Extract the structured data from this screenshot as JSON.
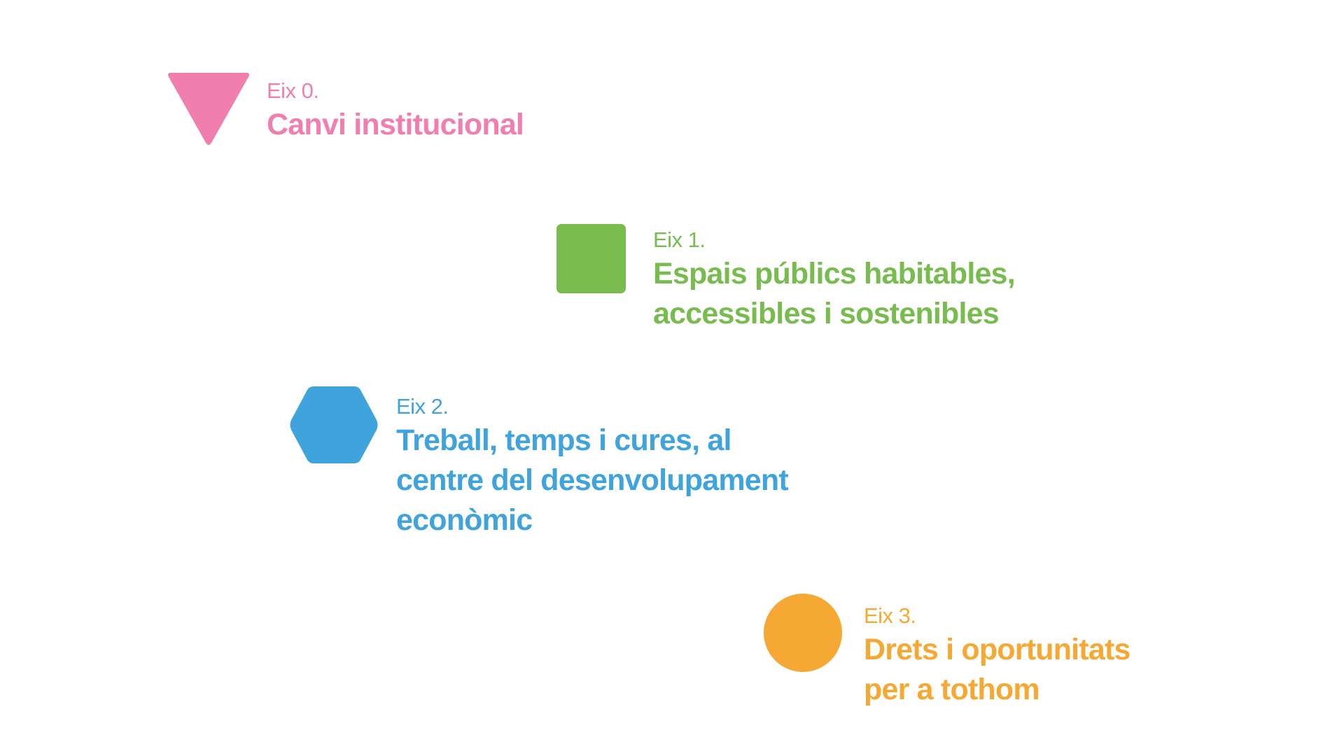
{
  "axes": [
    {
      "label": "Eix 0.",
      "title": [
        "Canvi institucional"
      ]
    },
    {
      "label": "Eix 1.",
      "title": [
        "Espais públics habitables,",
        "accessibles i sostenibles"
      ]
    },
    {
      "label": "Eix 2.",
      "title": [
        "Treball, temps i cures, al",
        "centre del desenvolupament",
        "econòmic"
      ]
    },
    {
      "label": "Eix 3.",
      "title": [
        "Drets i oportunitats",
        "per a tothom"
      ]
    }
  ]
}
